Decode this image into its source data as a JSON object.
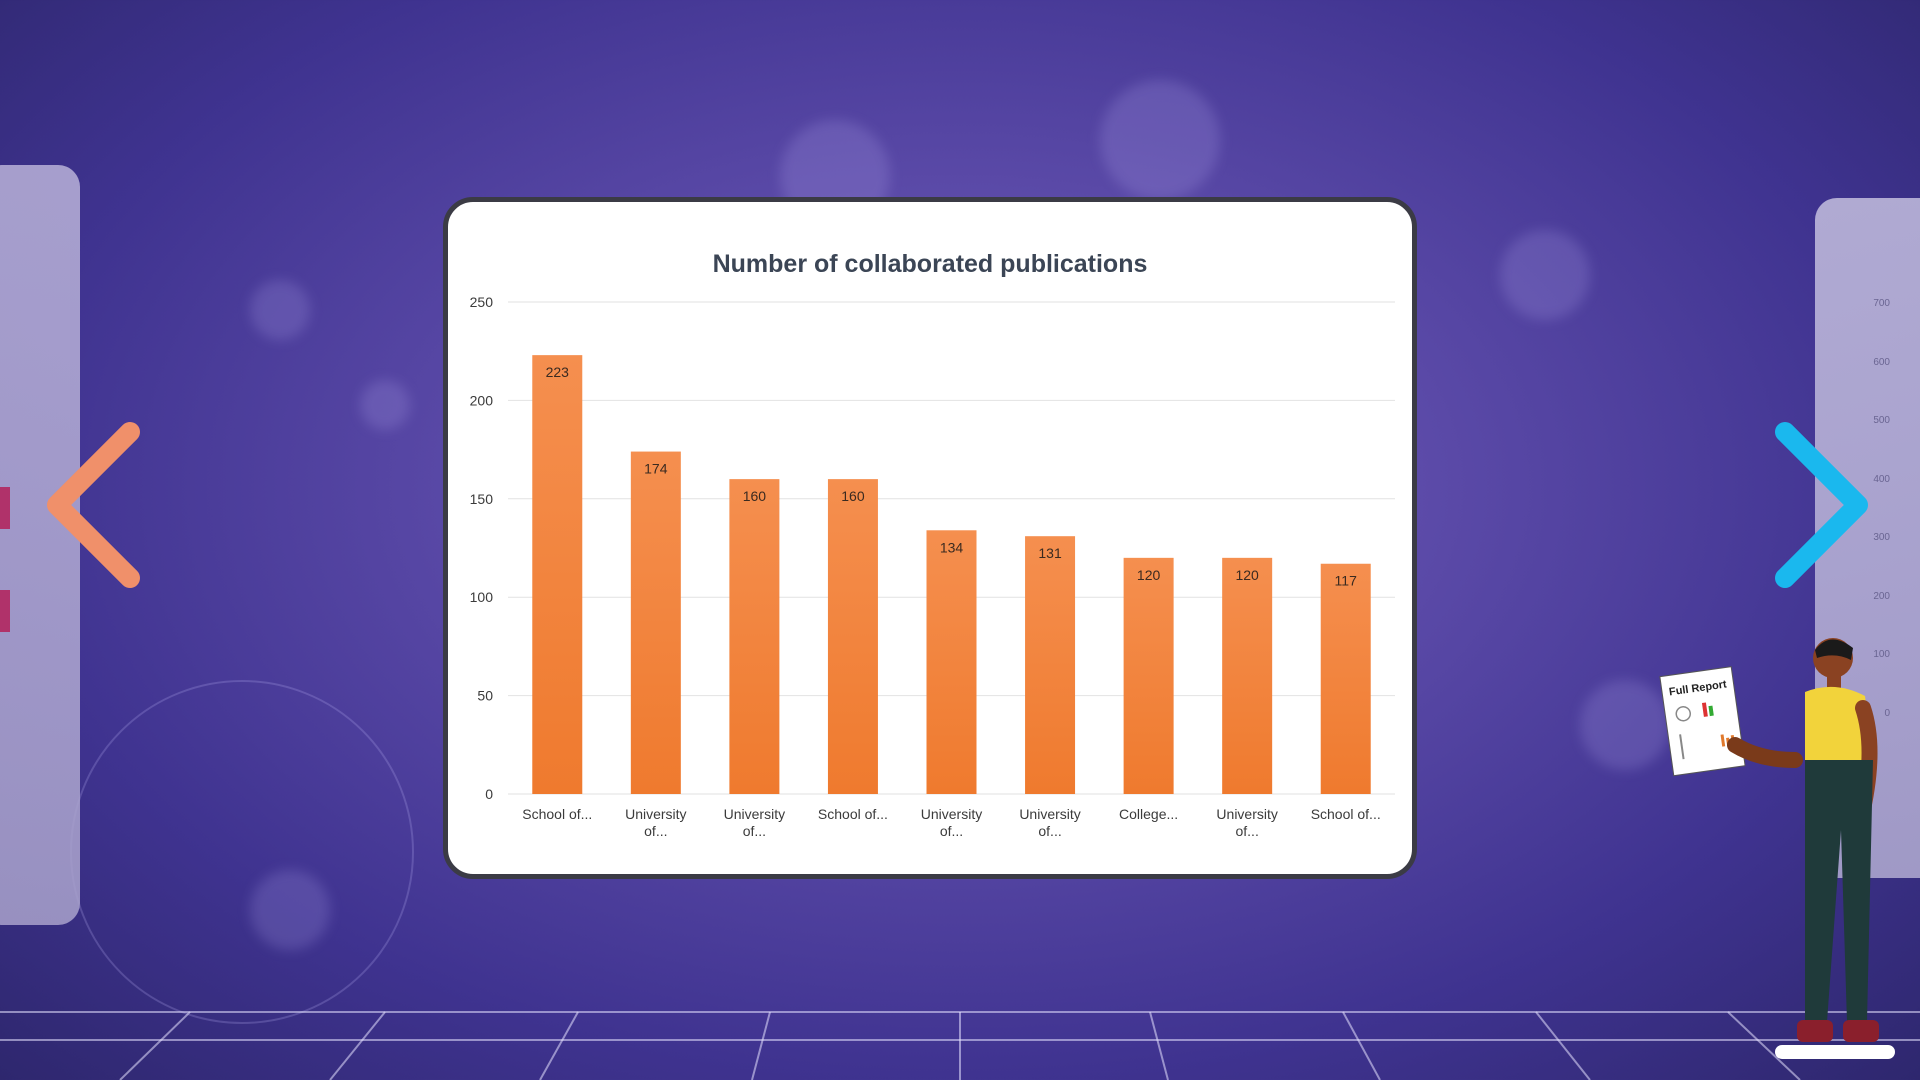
{
  "chart_data": {
    "type": "bar",
    "title": "Number of collaborated publications",
    "categories": [
      [
        "School of..."
      ],
      [
        "University",
        "of..."
      ],
      [
        "University",
        "of..."
      ],
      [
        "School of..."
      ],
      [
        "University",
        "of..."
      ],
      [
        "University",
        "of..."
      ],
      [
        "College..."
      ],
      [
        "University",
        "of..."
      ],
      [
        "School of..."
      ]
    ],
    "values": [
      223,
      174,
      160,
      160,
      134,
      131,
      120,
      120,
      117
    ],
    "ylim": [
      0,
      250
    ],
    "yticks": [
      0,
      50,
      100,
      150,
      200,
      250
    ],
    "grid": true,
    "legend": "none",
    "bar_color": "#ef7a2e",
    "bar_color_top": "#f58f4f",
    "label_color": "#3b3b3b"
  },
  "illustration": {
    "report_label": "Full Report"
  },
  "navigation": {
    "prev_icon": "chevron-left-icon",
    "next_icon": "chevron-right-icon",
    "prev_color": "#f0906a",
    "next_color": "#1ab8ee"
  },
  "side_chart": {
    "ticks": [
      "700",
      "600",
      "500",
      "400",
      "300",
      "200",
      "100",
      "0"
    ]
  }
}
